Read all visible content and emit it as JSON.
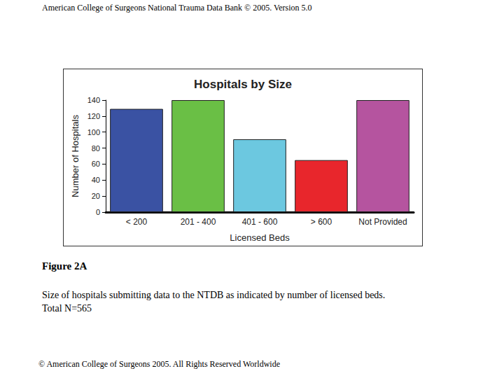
{
  "header": "American College of Surgeons National Trauma Data Bank © 2005. Version 5.0",
  "chart_data": {
    "type": "bar",
    "title": "Hospitals by Size",
    "x_label": "Licensed Beds",
    "y_label": "Number of Hospitals",
    "categories": [
      "< 200",
      "201 - 400",
      "401 - 600",
      "> 600",
      "Not Provided"
    ],
    "values": [
      129,
      140,
      91,
      65,
      140
    ],
    "colors": [
      "#3a52a3",
      "#6abf45",
      "#6cc8e0",
      "#e8262c",
      "#b5549f"
    ],
    "ylim": [
      0,
      140
    ],
    "yticks": [
      0,
      20,
      40,
      60,
      80,
      100,
      120,
      140
    ],
    "grid": false
  },
  "figure_label": "Figure 2A",
  "caption": "Size of hospitals submitting data to the NTDB as indicated by number of licensed beds.",
  "total": "Total N=565",
  "footer": "© American College of Surgeons 2005. All Rights Reserved Worldwide"
}
